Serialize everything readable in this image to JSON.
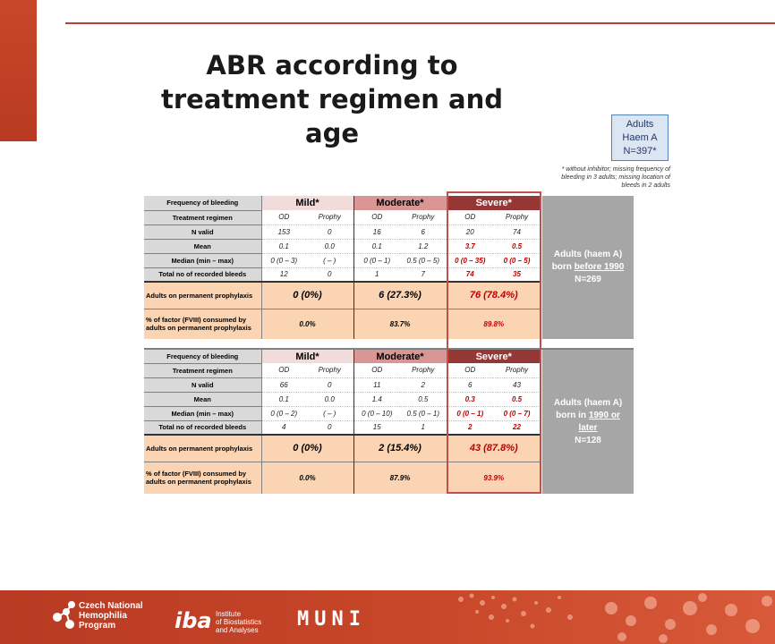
{
  "title": "ABR according to treatment regimen and age",
  "badge": {
    "line1": "Adults",
    "line2": "Haem A",
    "line3": "N=397*"
  },
  "footnote": "* without inhibitor; missing frequency of bleeding in 3 adults; missing location of bleeds in 2 adults",
  "colors": {
    "accent": "#b83a22",
    "mild": "#f2dcdb",
    "moderate": "#d99694",
    "severe": "#953734",
    "peach": "#fbd4b4",
    "highlight": "#c00000"
  },
  "tables": [
    {
      "severity_header": {
        "label": "Frequency of bleeding",
        "mild": "Mild*",
        "moderate": "Moderate*",
        "severe": "Severe*"
      },
      "regimen": {
        "label": "Treatment regimen",
        "cols": [
          "OD",
          "Prophy",
          "OD",
          "Prophy",
          "OD",
          "Prophy"
        ]
      },
      "n_valid": {
        "label": "N valid",
        "cols": [
          "153",
          "0",
          "16",
          "6",
          "20",
          "74"
        ]
      },
      "mean": {
        "label": "Mean",
        "cols": [
          "0.1",
          "0.0",
          "0.1",
          "1.2",
          "3.7",
          "0.5"
        ]
      },
      "median": {
        "label": "Median (min – max)",
        "cols": [
          "0 (0 – 3)",
          "( – )",
          "0 (0 – 1)",
          "0.5 (0 – 5)",
          "0 (0 – 35)",
          "0 (0 – 5)"
        ]
      },
      "total": {
        "label": "Total no of recorded bleeds",
        "cols": [
          "12",
          "0",
          "1",
          "7",
          "74",
          "35"
        ]
      },
      "prophylaxis": {
        "label": "Adults on permanent prophylaxis",
        "mild": "0 (0%)",
        "moderate": "6 (27.3%)",
        "severe": "76 (78.4%)"
      },
      "factor": {
        "label": "% of factor (FVIII) consumed by adults on permanent prophylaxis",
        "mild": "0.0%",
        "moderate": "83.7%",
        "severe": "89.8%"
      },
      "side": {
        "l1": "Adults (haem A)",
        "l2a": "born ",
        "l2b": "before 1990",
        "l3": "N=269"
      }
    },
    {
      "severity_header": {
        "label": "Frequency of bleeding",
        "mild": "Mild*",
        "moderate": "Moderate*",
        "severe": "Severe*"
      },
      "regimen": {
        "label": "Treatment regimen",
        "cols": [
          "OD",
          "Prophy",
          "OD",
          "Prophy",
          "OD",
          "Prophy"
        ]
      },
      "n_valid": {
        "label": "N valid",
        "cols": [
          "66",
          "0",
          "11",
          "2",
          "6",
          "43"
        ]
      },
      "mean": {
        "label": "Mean",
        "cols": [
          "0.1",
          "0.0",
          "1.4",
          "0.5",
          "0.3",
          "0.5"
        ]
      },
      "median": {
        "label": "Median (min – max)",
        "cols": [
          "0 (0 – 2)",
          "( – )",
          "0 (0 – 10)",
          "0.5 (0 – 1)",
          "0 (0 – 1)",
          "0 (0 – 7)"
        ]
      },
      "total": {
        "label": "Total no of recorded bleeds",
        "cols": [
          "4",
          "0",
          "15",
          "1",
          "2",
          "22"
        ]
      },
      "prophylaxis": {
        "label": "Adults on permanent prophylaxis",
        "mild": "0 (0%)",
        "moderate": "2 (15.4%)",
        "severe": "43 (87.8%)"
      },
      "factor": {
        "label": "% of factor (FVIII) consumed by adults on permanent prophylaxis",
        "mild": "0.0%",
        "moderate": "87.9%",
        "severe": "93.9%"
      },
      "side": {
        "l1": "Adults (haem A)",
        "l2a": "born in ",
        "l2b": "1990 or",
        "l3a": "later",
        "l4": "N=128"
      }
    }
  ],
  "footer": {
    "cnhp": {
      "l1": "Czech National",
      "l2": "Hemophilia",
      "l3": "Program"
    },
    "iba": {
      "mark": "iba",
      "l1": "Institute",
      "l2": "of Biostatistics",
      "l3": "and Analyses"
    },
    "muni": "MUNI"
  }
}
